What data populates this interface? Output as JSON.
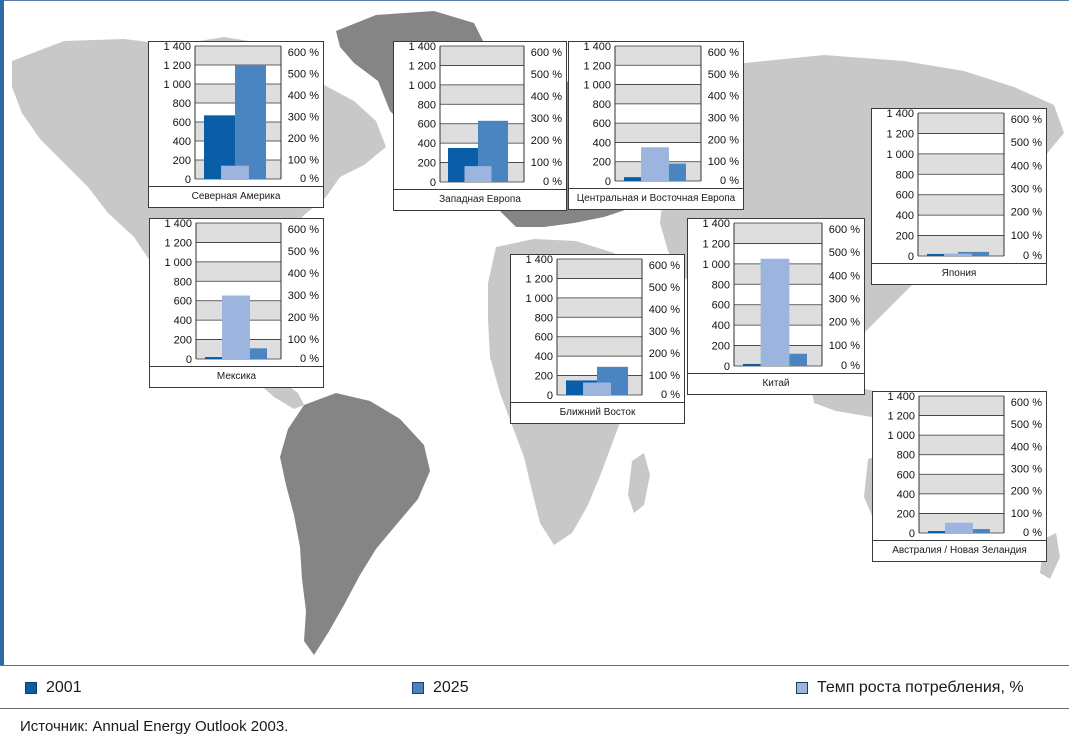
{
  "colors": {
    "s2001": "#0a5ea8",
    "s2025": "#4a85c2",
    "growth": "#9cb5de",
    "land_light": "#c8c8c8",
    "land_dark": "#858585",
    "grid_band": "#dedede"
  },
  "legend": {
    "item_2001": "2001",
    "item_2025": "2025",
    "item_growth": "Темп роста потребления, %"
  },
  "source": "Источник: Annual Energy Outlook 2003.",
  "chart_data": [
    {
      "type": "bar",
      "region": "Северная Америка",
      "left_axis": [
        "1 400",
        "1 200",
        "1 000",
        "800",
        "600",
        "400",
        "200",
        "0"
      ],
      "right_axis": [
        "600 %",
        "500 %",
        "400 %",
        "300 %",
        "200 %",
        "100 %",
        "0 %"
      ],
      "ylim_left": [
        0,
        1400
      ],
      "ylim_right": [
        0,
        600
      ],
      "series": [
        {
          "name": "2001",
          "value": 670
        },
        {
          "name": "2025",
          "value": 1200
        },
        {
          "name": "Темп роста потребления, %",
          "value": 60
        }
      ]
    },
    {
      "type": "bar",
      "region": "Западная Европа",
      "left_axis": [
        "1 400",
        "1 200",
        "1 000",
        "800",
        "600",
        "400",
        "200",
        "0"
      ],
      "right_axis": [
        "600 %",
        "500 %",
        "400 %",
        "300 %",
        "200 %",
        "100 %",
        "0 %"
      ],
      "ylim_left": [
        0,
        1400
      ],
      "ylim_right": [
        0,
        600
      ],
      "series": [
        {
          "name": "2001",
          "value": 350
        },
        {
          "name": "2025",
          "value": 630
        },
        {
          "name": "Темп роста потребления, %",
          "value": 70
        }
      ]
    },
    {
      "type": "bar",
      "region": "Центральная и Восточная Европа",
      "left_axis": [
        "1 400",
        "1 200",
        "1 000",
        "800",
        "600",
        "400",
        "200",
        "0"
      ],
      "right_axis": [
        "600 %",
        "500 %",
        "400 %",
        "300 %",
        "200 %",
        "100 %",
        "0 %"
      ],
      "ylim_left": [
        0,
        1400
      ],
      "ylim_right": [
        0,
        600
      ],
      "series": [
        {
          "name": "2001",
          "value": 40
        },
        {
          "name": "2025",
          "value": 180
        },
        {
          "name": "Темп роста потребления, %",
          "value": 150
        }
      ]
    },
    {
      "type": "bar",
      "region": "Япония",
      "left_axis": [
        "1 400",
        "1 200",
        "1 000",
        "800",
        "600",
        "400",
        "200",
        "0"
      ],
      "right_axis": [
        "600 %",
        "500 %",
        "400 %",
        "300 %",
        "200 %",
        "100 %",
        "0 %"
      ],
      "ylim_left": [
        0,
        1400
      ],
      "ylim_right": [
        0,
        600
      ],
      "series": [
        {
          "name": "2001",
          "value": 20
        },
        {
          "name": "2025",
          "value": 40
        },
        {
          "name": "Темп роста потребления, %",
          "value": 10
        }
      ]
    },
    {
      "type": "bar",
      "region": "Мексика",
      "left_axis": [
        "1 400",
        "1 200",
        "1 000",
        "800",
        "600",
        "400",
        "200",
        "0"
      ],
      "right_axis": [
        "600 %",
        "500 %",
        "400 %",
        "300 %",
        "200 %",
        "100 %",
        "0 %"
      ],
      "ylim_left": [
        0,
        1400
      ],
      "ylim_right": [
        0,
        600
      ],
      "series": [
        {
          "name": "2001",
          "value": 20
        },
        {
          "name": "2025",
          "value": 110
        },
        {
          "name": "Темп роста потребления, %",
          "value": 280
        }
      ]
    },
    {
      "type": "bar",
      "region": "Ближний Восток",
      "left_axis": [
        "1 400",
        "1 200",
        "1 000",
        "800",
        "600",
        "400",
        "200",
        "0"
      ],
      "right_axis": [
        "600 %",
        "500 %",
        "400 %",
        "300 %",
        "200 %",
        "100 %",
        "0 %"
      ],
      "ylim_left": [
        0,
        1400
      ],
      "ylim_right": [
        0,
        600
      ],
      "series": [
        {
          "name": "2001",
          "value": 150
        },
        {
          "name": "2025",
          "value": 290
        },
        {
          "name": "Темп роста потребления, %",
          "value": 55
        }
      ]
    },
    {
      "type": "bar",
      "region": "Китай",
      "left_axis": [
        "1 400",
        "1 200",
        "1 000",
        "800",
        "600",
        "400",
        "200",
        "0"
      ],
      "right_axis": [
        "600 %",
        "500 %",
        "400 %",
        "300 %",
        "200 %",
        "100 %",
        "0 %"
      ],
      "ylim_left": [
        0,
        1400
      ],
      "ylim_right": [
        0,
        600
      ],
      "series": [
        {
          "name": "2001",
          "value": 20
        },
        {
          "name": "2025",
          "value": 120
        },
        {
          "name": "Темп роста потребления, %",
          "value": 450
        }
      ]
    },
    {
      "type": "bar",
      "region": "Австралия / Новая Зеландия",
      "left_axis": [
        "1 400",
        "1 200",
        "1 000",
        "800",
        "600",
        "400",
        "200",
        "0"
      ],
      "right_axis": [
        "600 %",
        "500 %",
        "400 %",
        "300 %",
        "200 %",
        "100 %",
        "0 %"
      ],
      "ylim_left": [
        0,
        1400
      ],
      "ylim_right": [
        0,
        600
      ],
      "series": [
        {
          "name": "2001",
          "value": 20
        },
        {
          "name": "2025",
          "value": 40
        },
        {
          "name": "Темп роста потребления, %",
          "value": 45
        }
      ]
    }
  ]
}
